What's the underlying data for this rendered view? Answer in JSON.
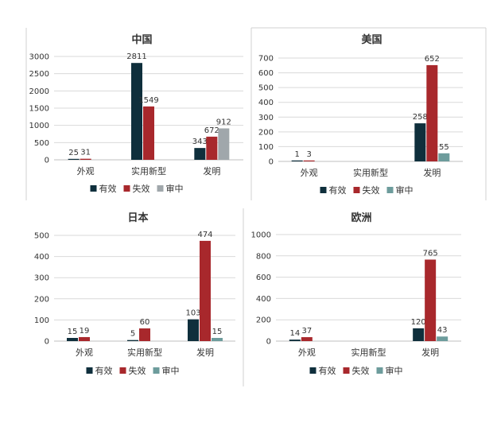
{
  "chart_data": [
    {
      "type": "bar",
      "title": "中国",
      "categories": [
        "外观",
        "实用新型",
        "发明"
      ],
      "series": [
        {
          "name": "有效",
          "values": [
            25,
            2811,
            343
          ]
        },
        {
          "name": "失效",
          "values": [
            31,
            1549,
            672
          ]
        },
        {
          "name": "审中",
          "values": [
            null,
            null,
            912
          ]
        }
      ],
      "ylim": [
        0,
        3000
      ],
      "yticks": [
        0,
        500,
        1000,
        1500,
        2000,
        2500,
        3000
      ],
      "legend": "bottom",
      "grid": true
    },
    {
      "type": "bar",
      "title": "美国",
      "categories": [
        "外观",
        "实用新型",
        "发明"
      ],
      "series": [
        {
          "name": "有效",
          "values": [
            1,
            null,
            258
          ]
        },
        {
          "name": "失效",
          "values": [
            3,
            null,
            652
          ]
        },
        {
          "name": "审中",
          "values": [
            null,
            null,
            55
          ]
        }
      ],
      "ylim": [
        0,
        700
      ],
      "yticks": [
        0,
        100,
        200,
        300,
        400,
        500,
        600,
        700
      ],
      "legend": "bottom",
      "grid": true
    },
    {
      "type": "bar",
      "title": "日本",
      "categories": [
        "外观",
        "实用新型",
        "发明"
      ],
      "series": [
        {
          "name": "有效",
          "values": [
            15,
            5,
            103
          ]
        },
        {
          "name": "失效",
          "values": [
            19,
            60,
            474
          ]
        },
        {
          "name": "审中",
          "values": [
            null,
            null,
            15
          ]
        }
      ],
      "ylim": [
        0,
        500
      ],
      "yticks": [
        0,
        100,
        200,
        300,
        400,
        500
      ],
      "legend": "bottom",
      "grid": true
    },
    {
      "type": "bar",
      "title": "欧洲",
      "categories": [
        "外观",
        "实用新型",
        "发明"
      ],
      "series": [
        {
          "name": "有效",
          "values": [
            14,
            null,
            120
          ]
        },
        {
          "name": "失效",
          "values": [
            37,
            null,
            765
          ]
        },
        {
          "name": "审中",
          "values": [
            null,
            null,
            43
          ]
        }
      ],
      "ylim": [
        0,
        1000
      ],
      "yticks": [
        0,
        200,
        400,
        600,
        800,
        1000
      ],
      "legend": "bottom",
      "grid": true
    }
  ],
  "colors": {
    "有效": "#0f2f3c",
    "失效": "#a8282c",
    "审中": "#6d9c9c",
    "审中_china": "#a0a7ab"
  }
}
